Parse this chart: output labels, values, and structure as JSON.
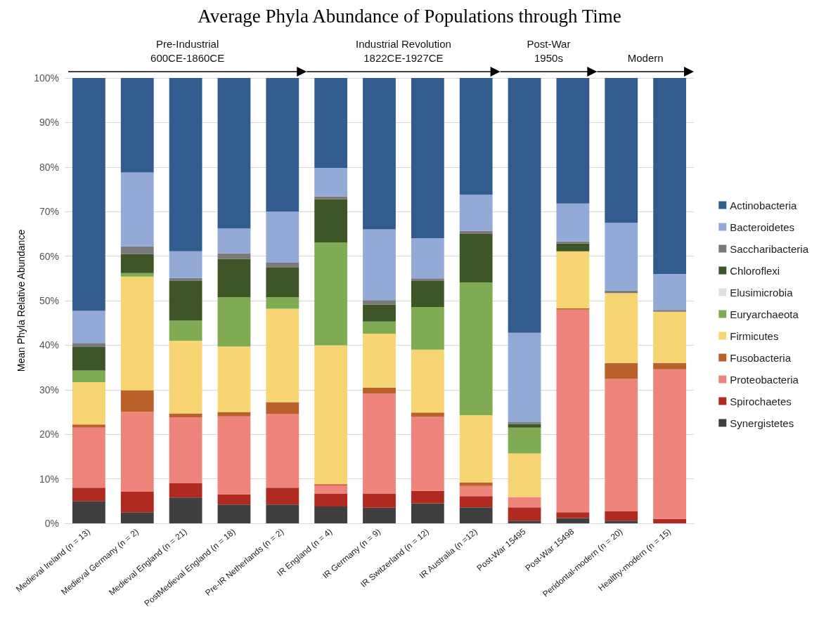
{
  "chart_data": {
    "type": "bar",
    "stacked": true,
    "title": "Average Phyla Abundance of Populations through Time",
    "ylabel": "Mean Phyla Relative Abundance",
    "categories": [
      "Medieval Ireland (n = 13)",
      "Medieval Germany (n = 2)",
      "Medieval England (n = 21)",
      "PostMedieval England (n = 18)",
      "Pre-IR Netherlands (n = 2)",
      "IR England (n = 4)",
      "IR Germany (n = 9)",
      "IR Switzerland (n = 12)",
      "IR Australia (n =12)",
      "Post-War 15495",
      "Post-War 15498",
      "Peridontal-modern (n = 20)",
      "Healthy-modern (n = 15)"
    ],
    "series": [
      {
        "name": "Synergistetes",
        "color": "#3f3f3f",
        "values": [
          5,
          2.5,
          5.8,
          4.2,
          4.2,
          3.8,
          3.5,
          4.5,
          3.6,
          0.6,
          1.2,
          0.6,
          0
        ]
      },
      {
        "name": "Spirochaetes",
        "color": "#b12a1f",
        "values": [
          3,
          4.6,
          3.2,
          2.3,
          3.8,
          2.9,
          3.2,
          2.8,
          2.5,
          3,
          1.3,
          2.1,
          1
        ]
      },
      {
        "name": "Proteobacteria",
        "color": "#ee847c",
        "values": [
          13.5,
          17.9,
          14.8,
          17.5,
          16.6,
          1.8,
          22.4,
          16.6,
          2.3,
          2.3,
          45.5,
          29.7,
          33.6
        ]
      },
      {
        "name": "Fusobacteria",
        "color": "#b9602b",
        "values": [
          0.7,
          4.9,
          0.9,
          1,
          2.6,
          0.3,
          1.4,
          1,
          0.8,
          0,
          0.3,
          3.6,
          1.4
        ]
      },
      {
        "name": "Firmicutes",
        "color": "#f7d572",
        "values": [
          9.5,
          25.5,
          16.3,
          14.7,
          21,
          31.2,
          12.1,
          14.1,
          15.1,
          9.8,
          12.8,
          15.7,
          11.5
        ]
      },
      {
        "name": "Euryarchaeota",
        "color": "#7fab52",
        "values": [
          2.6,
          0.8,
          4.5,
          11.1,
          2.6,
          23.1,
          2.7,
          9.6,
          29.8,
          5.8,
          0,
          0,
          0
        ]
      },
      {
        "name": "Elusimicrobia",
        "color": "#e0e0e0",
        "values": [
          0,
          0,
          0,
          0,
          0,
          0,
          0,
          0,
          0,
          0,
          0,
          0,
          0
        ]
      },
      {
        "name": "Chloroflexi",
        "color": "#3e5528",
        "values": [
          5.3,
          4.3,
          8.9,
          8.6,
          6.6,
          9.7,
          3.8,
          5.8,
          10.9,
          0.8,
          1.7,
          0,
          0
        ]
      },
      {
        "name": "Saccharibacteria",
        "color": "#7a7a7a",
        "values": [
          0.9,
          1.7,
          0.7,
          1.2,
          1.1,
          0.6,
          1,
          0.6,
          0.7,
          0.4,
          0.5,
          0.6,
          0.4
        ]
      },
      {
        "name": "Bacteroidetes",
        "color": "#93a9d6",
        "values": [
          7.2,
          16.6,
          6,
          5.6,
          11.5,
          6.4,
          15.9,
          9,
          8.1,
          20.1,
          8.5,
          15.2,
          8.1
        ]
      },
      {
        "name": "Actinobacteria",
        "color": "#335c8e",
        "values": [
          52.3,
          21.2,
          38.9,
          33.8,
          30,
          20.2,
          34,
          36,
          26.2,
          57.2,
          28.2,
          32.5,
          44
        ]
      }
    ],
    "ylim": [
      0,
      100
    ],
    "yticks": [
      {
        "value": 0,
        "label": "0%"
      },
      {
        "value": 10,
        "label": "10%"
      },
      {
        "value": 20,
        "label": "20%"
      },
      {
        "value": 30,
        "label": "30%"
      },
      {
        "value": 40,
        "label": "40%"
      },
      {
        "value": 50,
        "label": "50%"
      },
      {
        "value": 60,
        "label": "60%"
      },
      {
        "value": 70,
        "label": "70%"
      },
      {
        "value": 80,
        "label": "80%"
      },
      {
        "value": 90,
        "label": "90%"
      },
      {
        "value": 100,
        "label": "100%"
      }
    ],
    "grid": "y",
    "legend": "right",
    "annotations": [
      "Pre-Industrial\n600CE-1860CE",
      "Industrial Revolution\n1822CE-1927CE",
      "Post-War\n1950s",
      "Modern"
    ]
  }
}
